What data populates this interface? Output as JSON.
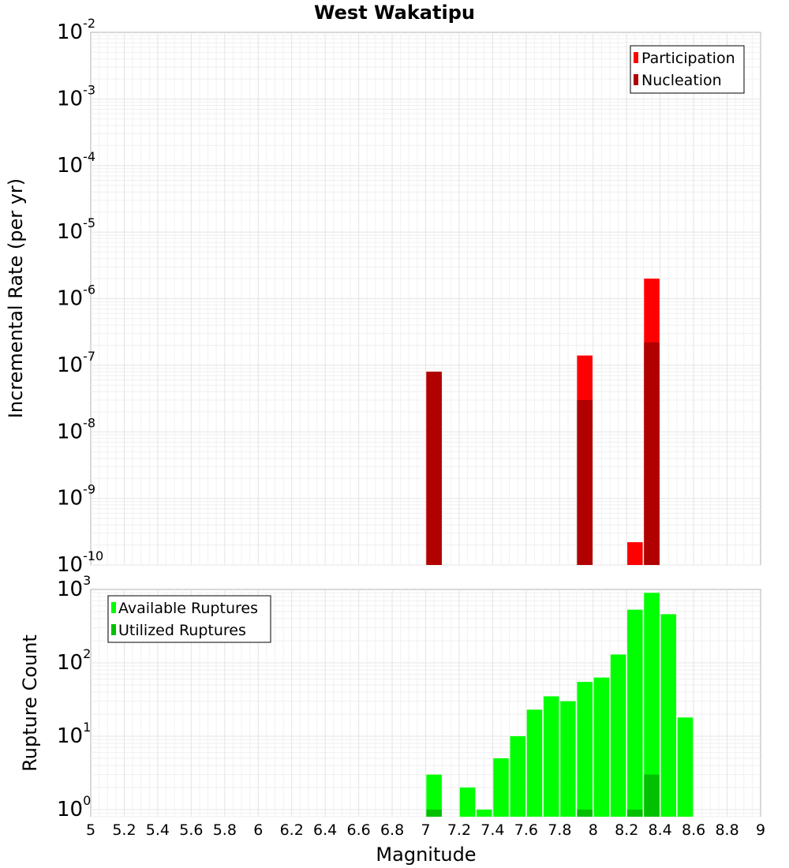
{
  "chart_data": [
    {
      "type": "bar",
      "title": "West Wakatipu",
      "xlabel": "",
      "ylabel": "Incremental Rate (per yr)",
      "yscale": "log",
      "ylim": [
        1e-10,
        0.01
      ],
      "xlim": [
        5,
        9
      ],
      "grid": true,
      "legend_position": "top-right",
      "y_tick_exponents": [
        -10,
        -9,
        -8,
        -7,
        -6,
        -5,
        -4,
        -3,
        -2
      ],
      "series": [
        {
          "name": "Participation",
          "color": "#ff0000",
          "points": [
            {
              "x": 7.05,
              "y": 8e-08
            },
            {
              "x": 7.95,
              "y": 1.4e-07
            },
            {
              "x": 8.25,
              "y": 2.2e-10
            },
            {
              "x": 8.35,
              "y": 2e-06
            }
          ]
        },
        {
          "name": "Nucleation",
          "color": "#b00000",
          "points": [
            {
              "x": 7.05,
              "y": 8e-08
            },
            {
              "x": 7.95,
              "y": 3e-08
            },
            {
              "x": 8.35,
              "y": 2.2e-07
            }
          ]
        }
      ]
    },
    {
      "type": "bar",
      "title": "",
      "xlabel": "Magnitude",
      "ylabel": "Rupture Count",
      "yscale": "log",
      "ylim": [
        0.8,
        1000
      ],
      "xlim": [
        5,
        9
      ],
      "grid": true,
      "legend_position": "top-left",
      "y_tick_exponents": [
        0,
        1,
        2,
        3
      ],
      "x_ticks": [
        "5",
        "5.2",
        "5.4",
        "5.6",
        "5.8",
        "6",
        "6.2",
        "6.4",
        "6.6",
        "6.8",
        "7",
        "7.2",
        "7.4",
        "7.6",
        "7.8",
        "8",
        "8.2",
        "8.4",
        "8.6",
        "8.8",
        "9"
      ],
      "series": [
        {
          "name": "Available Ruptures",
          "color": "#00ff00",
          "points": [
            {
              "x": 7.05,
              "y": 3
            },
            {
              "x": 7.25,
              "y": 2
            },
            {
              "x": 7.35,
              "y": 1
            },
            {
              "x": 7.45,
              "y": 5
            },
            {
              "x": 7.55,
              "y": 10
            },
            {
              "x": 7.65,
              "y": 23
            },
            {
              "x": 7.75,
              "y": 35
            },
            {
              "x": 7.85,
              "y": 30
            },
            {
              "x": 7.95,
              "y": 55
            },
            {
              "x": 8.05,
              "y": 63
            },
            {
              "x": 8.15,
              "y": 130
            },
            {
              "x": 8.25,
              "y": 530
            },
            {
              "x": 8.35,
              "y": 900
            },
            {
              "x": 8.45,
              "y": 460
            },
            {
              "x": 8.55,
              "y": 18
            }
          ]
        },
        {
          "name": "Utilized Ruptures",
          "color": "#00c000",
          "points": [
            {
              "x": 7.05,
              "y": 1
            },
            {
              "x": 7.95,
              "y": 1
            },
            {
              "x": 8.25,
              "y": 1
            },
            {
              "x": 8.35,
              "y": 3
            }
          ]
        }
      ]
    }
  ]
}
